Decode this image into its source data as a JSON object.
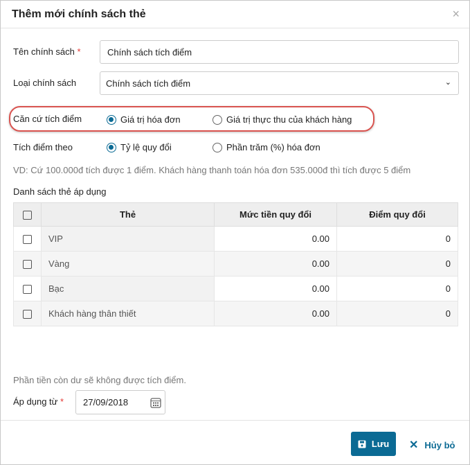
{
  "dialog": {
    "title": "Thêm mới chính sách thẻ",
    "close_icon": "×"
  },
  "form": {
    "policy_name": {
      "label": "Tên chính sách",
      "required": "*",
      "value": "Chính sách tích điểm"
    },
    "policy_type": {
      "label": "Loại chính sách",
      "value": "Chính sách tích điểm"
    },
    "basis": {
      "label": "Căn cứ tích điểm",
      "options": [
        "Giá trị hóa đơn",
        "Giá trị thực thu của khách hàng"
      ],
      "selected": 0
    },
    "accumulate_by": {
      "label": "Tích điểm theo",
      "options": [
        "Tỷ lệ quy đổi",
        "Phần trăm (%) hóa đơn"
      ],
      "selected": 0
    },
    "example": "VD: Cứ 100.000đ tích được 1 điểm. Khách hàng thanh toán hóa đơn 535.000đ thì tích được 5 điểm",
    "card_list_label": "Danh sách thẻ áp dụng",
    "table": {
      "headers": [
        "Thẻ",
        "Mức tiền quy đổi",
        "Điểm quy đổi"
      ],
      "rows": [
        {
          "card": "VIP",
          "amount": "0.00",
          "points": "0"
        },
        {
          "card": "Vàng",
          "amount": "0.00",
          "points": "0"
        },
        {
          "card": "Bạc",
          "amount": "0.00",
          "points": "0"
        },
        {
          "card": "Khách hàng thân thiết",
          "amount": "0.00",
          "points": "0"
        }
      ]
    },
    "remainder_note": "Phần tiền còn dư sẽ không được tích điểm.",
    "apply_from": {
      "label": "Áp dụng từ",
      "required": "*",
      "value": "27/09/2018"
    }
  },
  "footer": {
    "save_label": "Lưu",
    "cancel_label": "Hủy bỏ"
  },
  "colors": {
    "primary": "#0b6a94",
    "highlight": "#d9534f"
  }
}
